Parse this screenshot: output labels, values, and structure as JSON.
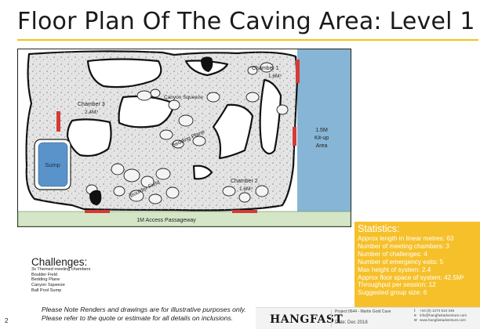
{
  "title": "Floor Plan Of The Caving Area: Level 1",
  "labels": {
    "chamber1": "Chamber 1",
    "chamber1_size": "1.6M³",
    "chamber2": "Chamber 2",
    "chamber2_size": "1.6M³",
    "chamber3": "Chamber 3",
    "chamber3_size": "2.4M³",
    "canyon": "Canyon Squeeze",
    "bedding": "Bedding Plane",
    "boulder": "Boulder Field",
    "sump": "Sump",
    "kitup_1": "1.5M",
    "kitup_2": "Kit-up",
    "kitup_3": "Area",
    "passage": "1M Access Passageway"
  },
  "colors": {
    "cave_fill": "#e4e4e4",
    "wall": "#111111",
    "kitup": "#87b5d6",
    "sump": "#5a93c9",
    "passage": "#d5e6c7",
    "exit_marker": "#d63a36",
    "stats_bg": "#f6c02a",
    "accent": "#f2c21b"
  },
  "challenges": {
    "title": "Challenges:",
    "items": [
      "3x Themed meeting chambers",
      "Boulder Field",
      "Bedding Plane",
      "Canyon Squeeze",
      "Ball Pool Sump"
    ]
  },
  "statistics": {
    "title": "Statistics:",
    "lines": [
      "Approx length in linear metres: 63",
      "Number of meeting chambers: 3",
      "Number of challenges: 4",
      "Number of emergency exits: 5",
      "Max height of system: 2.4",
      "Approx floor space of system: 42.5M²",
      "Throughput per session: 12",
      "Suggested group size: 6"
    ]
  },
  "note": {
    "line1": "Please Note Renders and drawings are for illustrative purposes only.",
    "line2": "Please refer to the quote or estimate for all details on inclusions."
  },
  "page_number": "2",
  "footer": {
    "brand": "HANGFAST",
    "project": "Project:0644 - Martin Gold Cave",
    "date": "Date: Dec 2018",
    "phone": "+44 (0) 1274 510 448",
    "email": "info@hangfastadventure.com",
    "web": "www.hangfastadventure.com"
  }
}
